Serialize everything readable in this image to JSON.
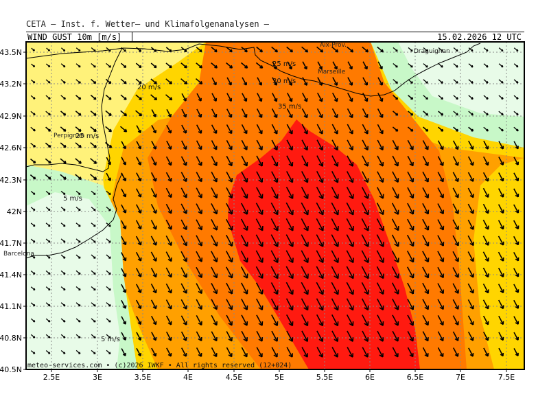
{
  "header": {
    "title": "CETA — Inst. f. Wetter— und Klimafolgenanalysen —",
    "parameter": "WIND GUST 10m [m/s]",
    "valid_time": "15.02.2026 12 UTC"
  },
  "axes": {
    "lat_ticks": [
      "43.5N",
      "43.2N",
      "42.9N",
      "42.6N",
      "42.3N",
      "42N",
      "41.7N",
      "41.4N",
      "41.1N",
      "40.8N",
      "40.5N"
    ],
    "lon_ticks": [
      "2.5E",
      "3E",
      "3.5E",
      "4E",
      "4.5E",
      "5E",
      "5.5E",
      "6E",
      "6.5E",
      "7E",
      "7.5E"
    ]
  },
  "contour_labels": [
    "20 m/s",
    "25 m/s",
    "25 m/s",
    "30 m/s",
    "35 m/s",
    "5 m/s",
    "5 m/s"
  ],
  "cities": [
    "Aix-Prov.",
    "Marseille",
    "Draguignan",
    "Perpignan",
    "Barcelona"
  ],
  "credit": "meteo-services.com • (c)2026 IWKF • All rights reserved (12+024)",
  "colors": {
    "lt_green": "#e8fbe8",
    "green": "#c8f8c8",
    "lt_yellow": "#fff27a",
    "yellow": "#ffd500",
    "orange": "#ffa000",
    "dk_orange": "#ff7a00",
    "red": "#ff1a10",
    "coast": "#000000",
    "arrow": "#000000"
  },
  "wind_field": {
    "units": "m/s",
    "direction_description": "northwest (mistral) flow, strongest over Gulf of Lion",
    "max_gust_band": "35+"
  }
}
